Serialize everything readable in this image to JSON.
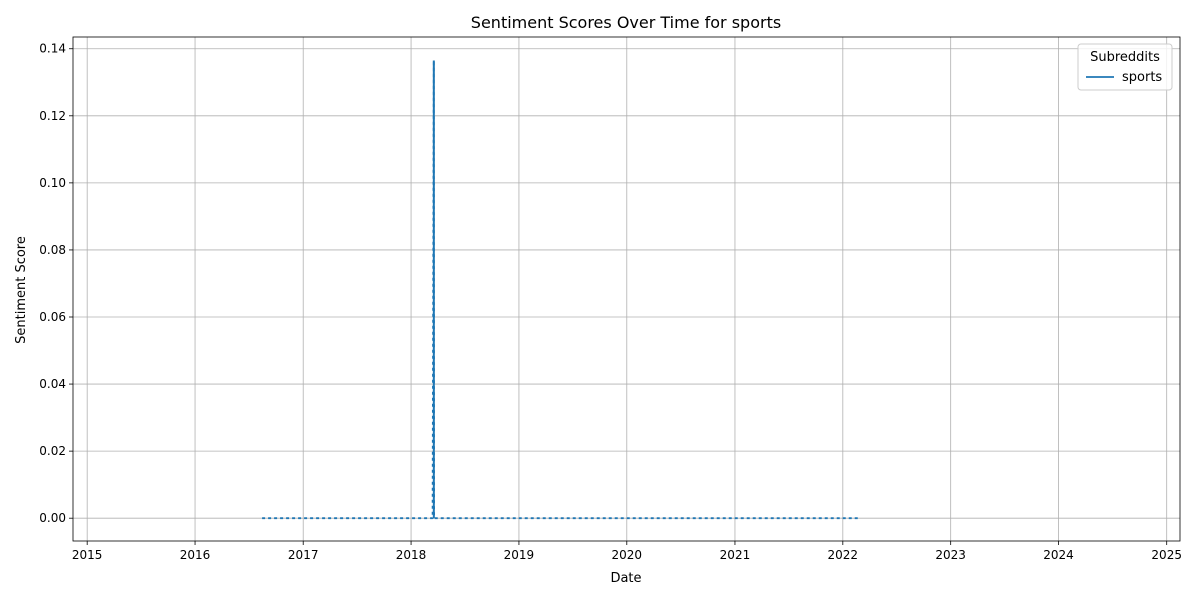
{
  "chart_data": {
    "type": "line",
    "title": "Sentiment Scores Over Time for sports",
    "xlabel": "Date",
    "ylabel": "Sentiment Score",
    "xlim": [
      "2014-11-14",
      "2025-02-15"
    ],
    "ylim": [
      -0.0068,
      0.1435
    ],
    "x_ticks": [
      "2015",
      "2016",
      "2017",
      "2018",
      "2019",
      "2020",
      "2021",
      "2022",
      "2023",
      "2024",
      "2025"
    ],
    "y_ticks": [
      "0.00",
      "0.02",
      "0.04",
      "0.06",
      "0.08",
      "0.10",
      "0.12",
      "0.14"
    ],
    "grid": true,
    "legend": {
      "title": "Subreddits",
      "placement": "top-right",
      "entries": [
        "sports"
      ]
    },
    "series": [
      {
        "name": "sports",
        "color": "#1f77b4",
        "points": [
          [
            "2016-08-15",
            0.0
          ],
          [
            "2016-10-20",
            0.0
          ],
          [
            "2016-11-20",
            0.0
          ],
          [
            "2016-12-15",
            0.0
          ],
          [
            "2017-01-10",
            0.0
          ],
          [
            "2017-03-15",
            0.0
          ],
          [
            "2017-04-20",
            0.0
          ],
          [
            "2017-06-20",
            0.0
          ],
          [
            "2017-08-15",
            0.0
          ],
          [
            "2017-10-10",
            0.0
          ],
          [
            "2017-12-15",
            0.0
          ],
          [
            "2018-03-15",
            0.0
          ],
          [
            "2018-03-19",
            0.1365
          ],
          [
            "2018-03-20",
            0.0008
          ],
          [
            "2018-03-22",
            0.0
          ],
          [
            "2018-05-20",
            0.0
          ],
          [
            "2018-07-20",
            0.0
          ],
          [
            "2018-09-20",
            0.0
          ],
          [
            "2018-11-20",
            0.0
          ],
          [
            "2019-01-20",
            0.0
          ],
          [
            "2019-03-01",
            0.0
          ],
          [
            "2019-04-15",
            0.0
          ],
          [
            "2019-06-01",
            0.0
          ],
          [
            "2019-07-15",
            0.0
          ],
          [
            "2019-09-01",
            0.0
          ],
          [
            "2019-10-20",
            0.0
          ],
          [
            "2019-11-25",
            0.0
          ],
          [
            "2020-01-25",
            0.0
          ],
          [
            "2020-03-15",
            0.0
          ],
          [
            "2020-06-10",
            0.0
          ],
          [
            "2020-07-20",
            0.0
          ],
          [
            "2020-09-10",
            0.0
          ],
          [
            "2020-11-15",
            0.0
          ],
          [
            "2021-01-25",
            0.0
          ],
          [
            "2021-04-01",
            0.0
          ],
          [
            "2021-05-15",
            0.0
          ],
          [
            "2021-07-15",
            0.0
          ],
          [
            "2021-08-15",
            0.0
          ],
          [
            "2022-01-15",
            0.0
          ],
          [
            "2022-02-25",
            0.0
          ]
        ]
      }
    ]
  }
}
